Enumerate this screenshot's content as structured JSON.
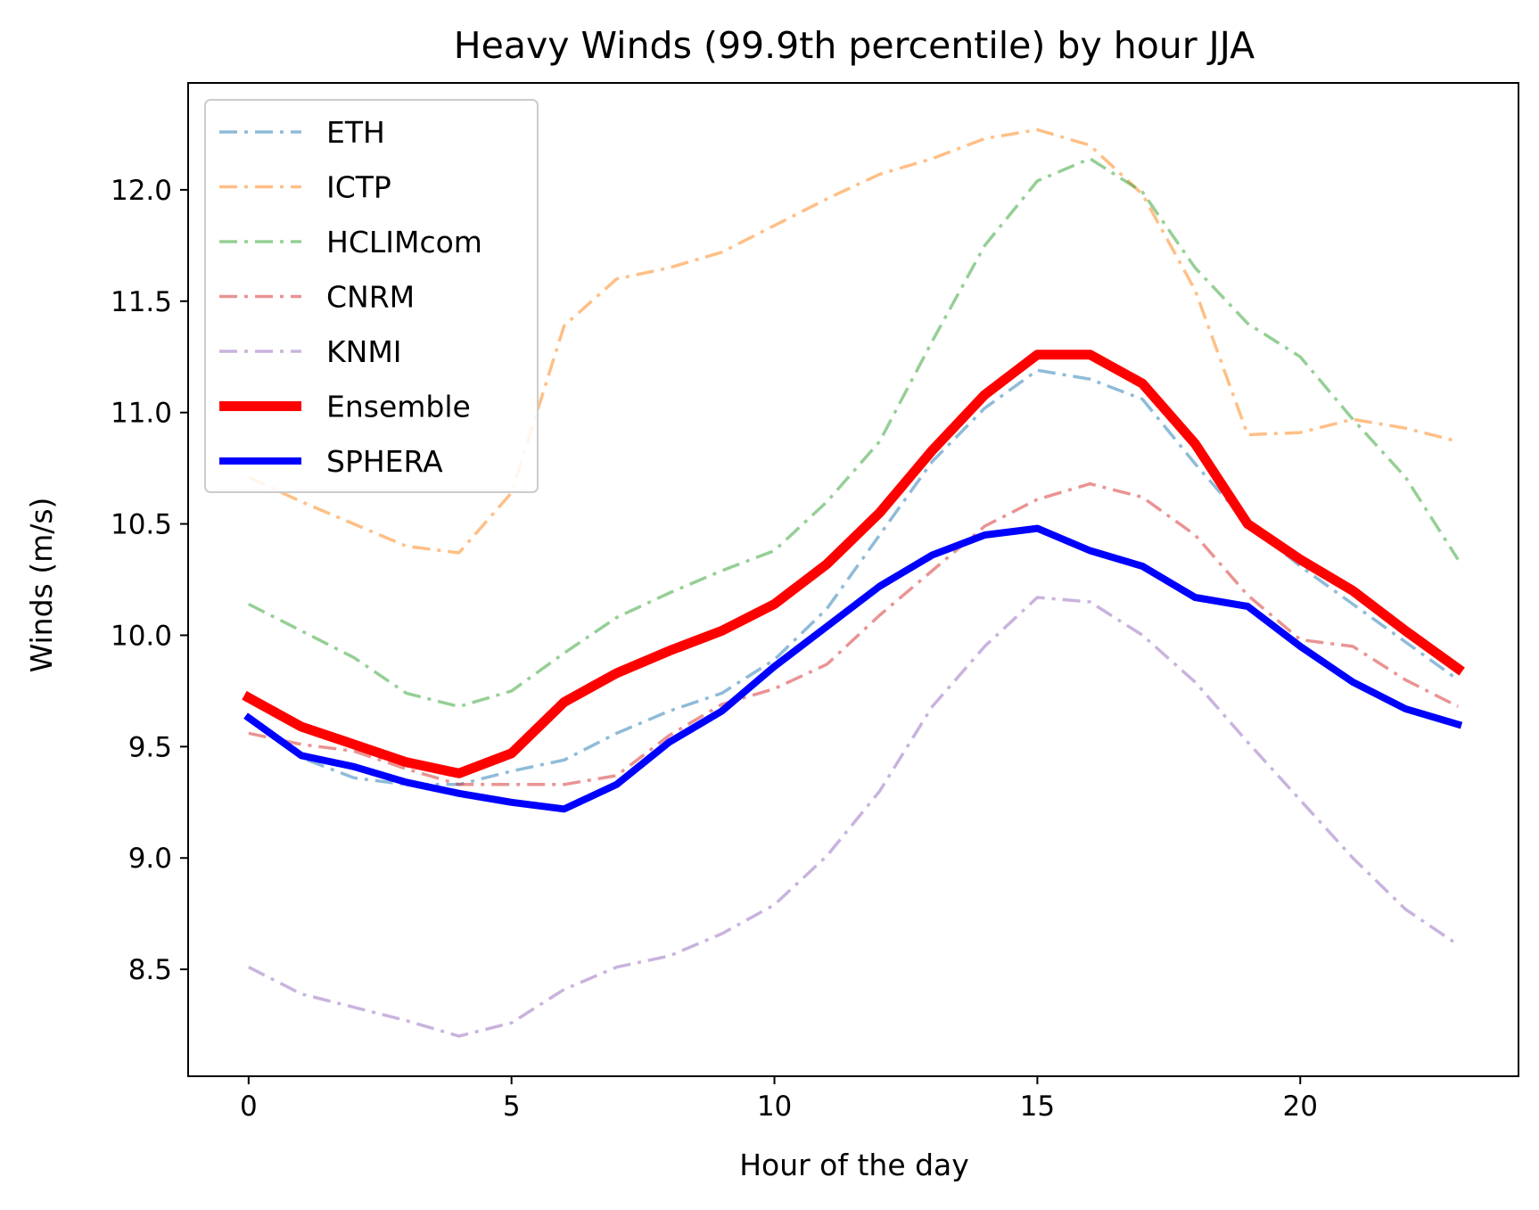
{
  "chart_data": {
    "type": "line",
    "title": "Heavy Winds (99.9th percentile) by hour JJA",
    "xlabel": "Hour of the day",
    "ylabel": "Winds (m/s)",
    "xlim": [
      -1.15,
      24.15
    ],
    "ylim": [
      8.02,
      12.48
    ],
    "xticks": [
      0,
      5,
      10,
      15,
      20
    ],
    "yticks": [
      8.5,
      9.0,
      9.5,
      10.0,
      10.5,
      11.0,
      11.5,
      12.0
    ],
    "ytick_labels": [
      "8.5",
      "9.0",
      "9.5",
      "10.0",
      "10.5",
      "11.0",
      "11.5",
      "12.0"
    ],
    "grid": false,
    "legend_position": "upper-left",
    "x": [
      0,
      1,
      2,
      3,
      4,
      5,
      6,
      7,
      8,
      9,
      10,
      11,
      12,
      13,
      14,
      15,
      16,
      17,
      18,
      19,
      20,
      21,
      22,
      23
    ],
    "series": [
      {
        "name": "ETH",
        "style": "dashdot",
        "color": "#1f77b4",
        "opacity": 0.5,
        "width": "thin",
        "values": [
          9.62,
          9.45,
          9.36,
          9.33,
          9.33,
          9.39,
          9.44,
          9.56,
          9.66,
          9.74,
          9.89,
          10.12,
          10.45,
          10.78,
          11.02,
          11.19,
          11.15,
          11.06,
          10.77,
          10.5,
          10.31,
          10.14,
          9.97,
          9.8
        ]
      },
      {
        "name": "ICTP",
        "style": "dashdot",
        "color": "#ff7f0e",
        "opacity": 0.5,
        "width": "thin",
        "values": [
          10.71,
          10.6,
          10.5,
          10.4,
          10.37,
          10.64,
          11.39,
          11.6,
          11.65,
          11.72,
          11.84,
          11.96,
          12.07,
          12.14,
          12.23,
          12.27,
          12.2,
          11.98,
          11.55,
          10.9,
          10.91,
          10.97,
          10.93,
          10.87
        ]
      },
      {
        "name": "HCLIMcom",
        "style": "dashdot",
        "color": "#2ca02c",
        "opacity": 0.5,
        "width": "thin",
        "values": [
          10.14,
          10.02,
          9.9,
          9.74,
          9.68,
          9.75,
          9.92,
          10.08,
          10.19,
          10.29,
          10.38,
          10.6,
          10.87,
          11.32,
          11.75,
          12.04,
          12.14,
          11.99,
          11.65,
          11.4,
          11.25,
          10.97,
          10.71,
          10.34
        ]
      },
      {
        "name": "CNRM",
        "style": "dashdot",
        "color": "#d62728",
        "opacity": 0.5,
        "width": "thin",
        "values": [
          9.56,
          9.51,
          9.48,
          9.4,
          9.33,
          9.33,
          9.33,
          9.37,
          9.55,
          9.69,
          9.76,
          9.87,
          10.09,
          10.29,
          10.49,
          10.61,
          10.68,
          10.62,
          10.45,
          10.18,
          9.98,
          9.95,
          9.8,
          9.68
        ]
      },
      {
        "name": "KNMI",
        "style": "dashdot",
        "color": "#9467bd",
        "opacity": 0.5,
        "width": "thin",
        "values": [
          8.51,
          8.39,
          8.33,
          8.27,
          8.2,
          8.26,
          8.41,
          8.51,
          8.56,
          8.66,
          8.79,
          9.01,
          9.3,
          9.68,
          9.95,
          10.17,
          10.15,
          10.0,
          9.79,
          9.52,
          9.26,
          9.0,
          8.77,
          8.61
        ]
      },
      {
        "name": "Ensemble",
        "style": "solid",
        "color": "#ff0000",
        "opacity": 1,
        "width": "thick",
        "values": [
          9.72,
          9.59,
          9.51,
          9.43,
          9.38,
          9.47,
          9.7,
          9.83,
          9.93,
          10.02,
          10.14,
          10.32,
          10.55,
          10.83,
          11.08,
          11.26,
          11.26,
          11.13,
          10.86,
          10.5,
          10.34,
          10.2,
          10.02,
          9.85
        ]
      },
      {
        "name": "SPHERA",
        "style": "solid",
        "color": "#0000ff",
        "opacity": 1,
        "width": "medium",
        "values": [
          9.63,
          9.46,
          9.41,
          9.34,
          9.29,
          9.25,
          9.22,
          9.33,
          9.52,
          9.66,
          9.86,
          10.04,
          10.22,
          10.36,
          10.45,
          10.48,
          10.38,
          10.31,
          10.17,
          10.13,
          9.95,
          9.79,
          9.67,
          9.6
        ]
      }
    ]
  }
}
